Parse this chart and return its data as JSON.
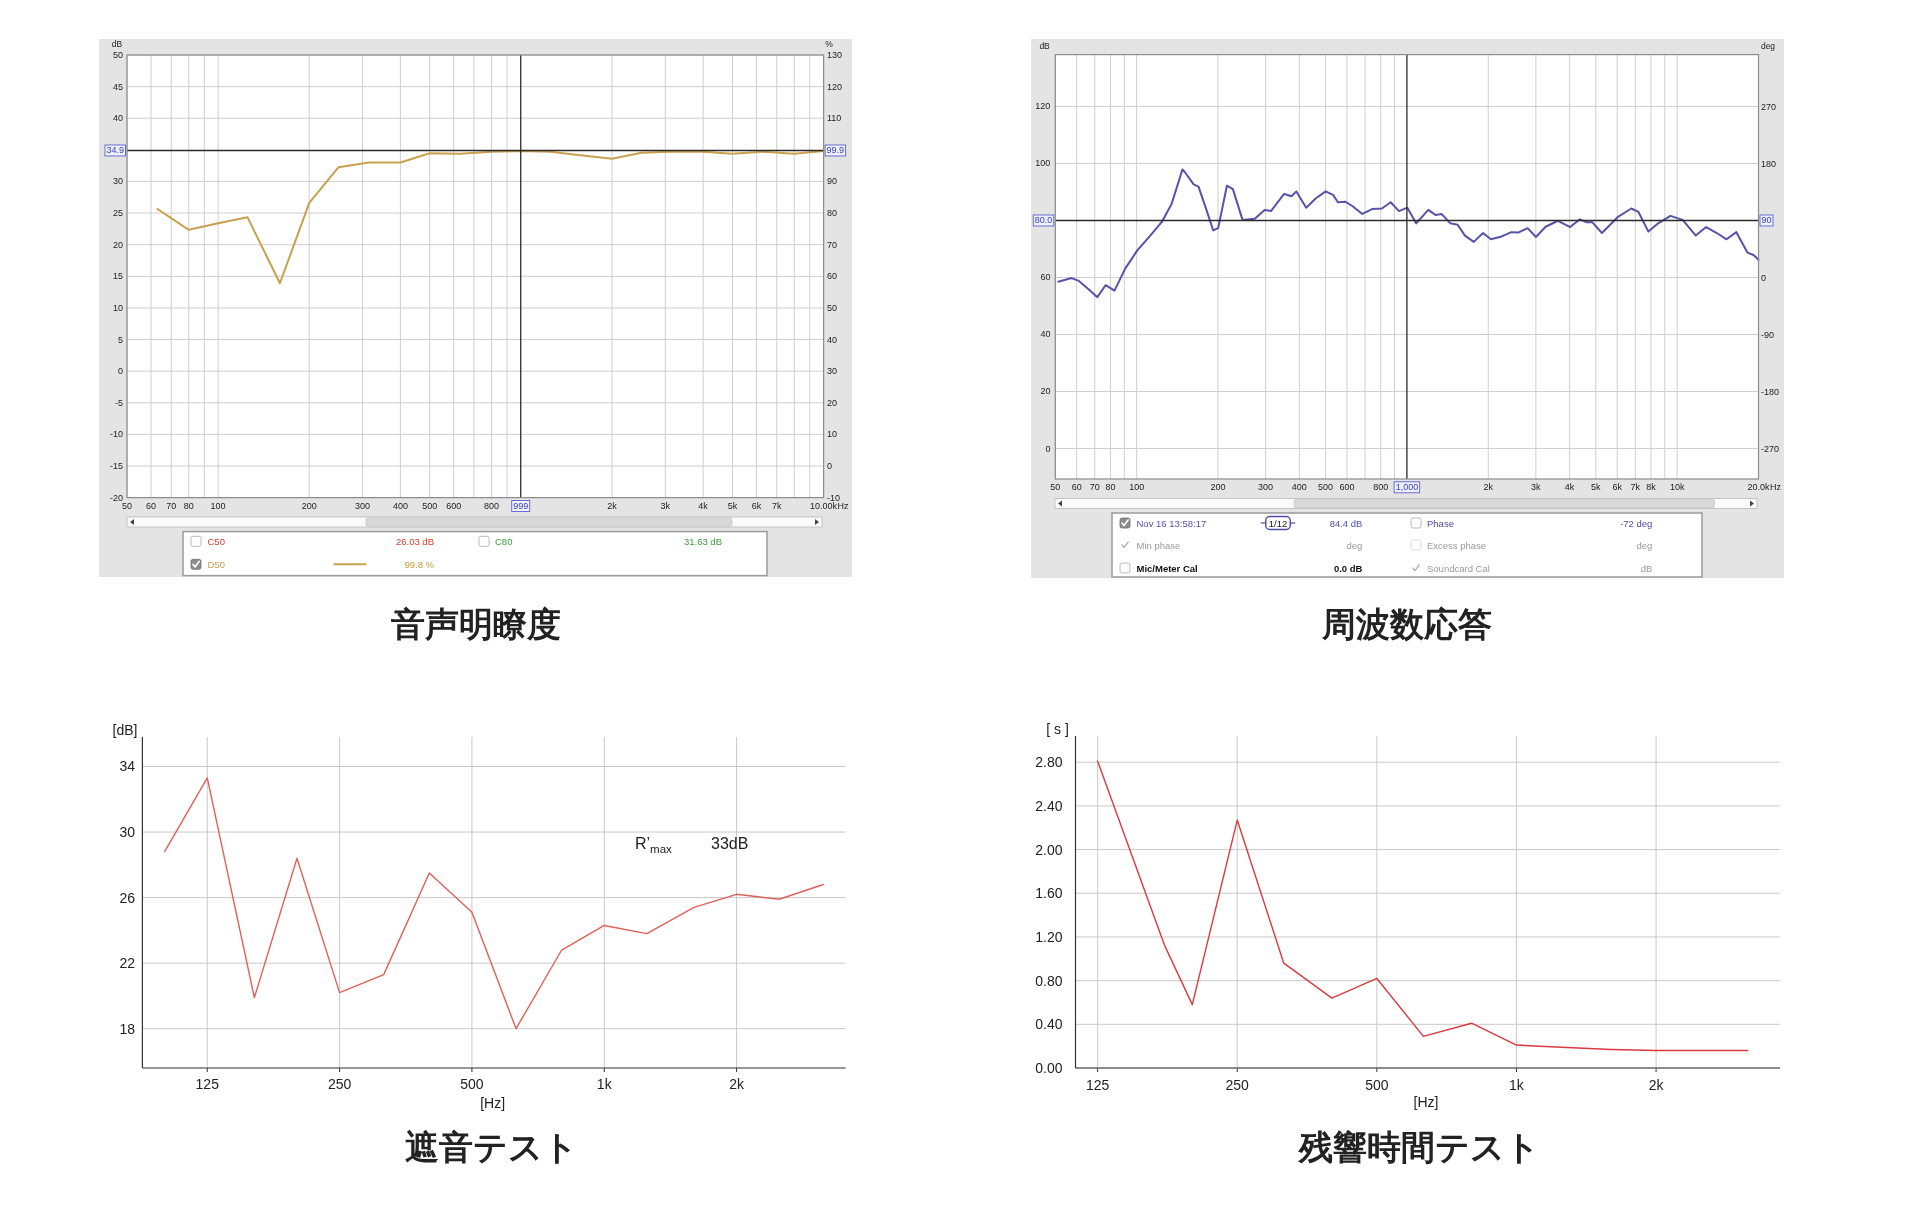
{
  "chart_data": [
    {
      "type": "line",
      "title": "音声明瞭度",
      "xlabel": "Hz",
      "ylabel": "dB",
      "y2label": "%",
      "x": [
        63,
        80,
        100,
        125,
        160,
        200,
        250,
        315,
        400,
        500,
        630,
        800,
        1000,
        1250,
        1600,
        2000,
        2500,
        3150,
        4000,
        5000,
        6300,
        8000,
        10000
      ],
      "series": [
        {
          "name": "D50",
          "color": "#c9a04e",
          "axis": "y2",
          "values": [
            81.3,
            74.7,
            76.8,
            78.7,
            57.8,
            83.2,
            94.5,
            96.0,
            96.0,
            98.9,
            98.8,
            99.4,
            99.6,
            99.4,
            98.2,
            97.2,
            99.1,
            99.4,
            99.4,
            98.8,
            99.4,
            98.8,
            99.6
          ]
        }
      ],
      "xlim": [
        50,
        10000
      ],
      "xticks": [
        50,
        60,
        70,
        80,
        {
          "value": 90,
          "label": null
        },
        100,
        200,
        300,
        400,
        500,
        600,
        {
          "value": 700,
          "label": null
        },
        800,
        {
          "value": 900,
          "label": null
        },
        {
          "value": 2000,
          "label": "2k"
        },
        {
          "value": 3000,
          "label": "3k"
        },
        {
          "value": 4000,
          "label": "4k"
        },
        {
          "value": 5000,
          "label": "5k"
        },
        {
          "value": 6000,
          "label": "6k"
        },
        {
          "value": 7000,
          "label": "7k"
        },
        {
          "value": 8000,
          "label": null
        },
        {
          "value": 9000,
          "label": null
        },
        {
          "value": 10000,
          "label": "10.00k"
        }
      ],
      "ylim": [
        -20,
        50
      ],
      "yticks": [
        -20,
        -15,
        -10,
        -5,
        0,
        5,
        10,
        15,
        20,
        25,
        30,
        40,
        45,
        50
      ],
      "y2lim": [
        -10,
        130
      ],
      "y2ticks": [
        -10,
        0,
        10,
        20,
        30,
        40,
        50,
        60,
        70,
        80,
        90,
        110,
        120,
        130
      ],
      "log": "x",
      "grid": true,
      "legend": "bottom",
      "ref_lines": [
        {
          "axis": "y",
          "value": 34.9,
          "label": "34.9"
        },
        {
          "axis": "x",
          "value": 999,
          "label": "999"
        }
      ],
      "annotations": [
        "C50",
        "26.03 dB",
        "C80",
        "31.63 dB",
        "99.8 %",
        {
          "text": "99.9",
          "x": 10000,
          "y": 34.9
        }
      ]
    },
    {
      "type": "line",
      "title": "周波数応答",
      "xlabel": "Hz",
      "ylabel": "dB",
      "y2label": "deg",
      "x": [
        51.3,
        57.4,
        61.1,
        66.4,
        71.5,
        76.8,
        82.8,
        90.7,
        100.7,
        111.7,
        123.9,
        134.8,
        147.7,
        150.7,
        162.5,
        169.4,
        181.9,
        192,
        200.2,
        215.8,
        227,
        246.5,
        273.6,
        297.4,
        314,
        351.3,
        374,
        390,
        424,
        460.6,
        500.6,
        533,
        555.6,
        591,
        629.7,
        684,
        743,
        808,
        871,
        935,
        1004,
        1082,
        1200,
        1278,
        1343,
        1448,
        1541,
        1640,
        1768,
        1913,
        2046,
        2242,
        2436,
        2592,
        2797,
        3002,
        3262,
        3622,
        4020,
        4365,
        4610,
        4847,
        5270,
        6045,
        6760,
        7193,
        7827,
        8508,
        9443,
        10480,
        11720,
        12800,
        14020,
        15230,
        16560,
        18220,
        19170,
        20000
      ],
      "series": [
        {
          "name": "Nov 16 13:58:17",
          "color": "#5753a8",
          "values": [
            58.5,
            59.8,
            58.8,
            55.9,
            53.1,
            57.3,
            55.4,
            63.1,
            69.6,
            74.4,
            79.5,
            85.9,
            97.9,
            97.0,
            92.7,
            91.9,
            83.3,
            76.5,
            77.3,
            92.2,
            91.0,
            80.2,
            80.6,
            83.7,
            83.3,
            89.3,
            88.5,
            90.2,
            84.5,
            87.8,
            90.2,
            89.0,
            86.4,
            86.6,
            85.0,
            82.3,
            84.0,
            84.2,
            86.4,
            83.3,
            84.5,
            79.0,
            83.7,
            81.9,
            82.3,
            79.0,
            78.5,
            74.7,
            72.5,
            75.6,
            73.4,
            74.4,
            75.9,
            75.8,
            77.3,
            74.2,
            77.8,
            79.9,
            77.7,
            80.4,
            79.4,
            79.4,
            75.6,
            81.3,
            84.2,
            83.0,
            76.1,
            79.0,
            81.6,
            80.2,
            74.7,
            77.7,
            75.6,
            73.4,
            75.9,
            68.7,
            67.9,
            66.2
          ]
        }
      ],
      "xlim": [
        50,
        20000
      ],
      "xticks": [
        50,
        60,
        70,
        80,
        {
          "value": 90,
          "label": null
        },
        100,
        200,
        300,
        400,
        500,
        600,
        {
          "value": 700,
          "label": null
        },
        800,
        {
          "value": 900,
          "label": null
        },
        {
          "value": 2000,
          "label": "2k"
        },
        {
          "value": 3000,
          "label": "3k"
        },
        {
          "value": 4000,
          "label": "4k"
        },
        {
          "value": 5000,
          "label": "5k"
        },
        {
          "value": 6000,
          "label": "6k"
        },
        {
          "value": 7000,
          "label": "7k"
        },
        {
          "value": 8000,
          "label": "8k"
        },
        {
          "value": 9000,
          "label": null
        },
        {
          "value": 10000,
          "label": "10k"
        },
        {
          "value": 20000,
          "label": "20.0k"
        }
      ],
      "ylim": [
        -10.7,
        138.2
      ],
      "yticks": [
        0,
        20,
        40,
        60,
        100,
        120
      ],
      "y2lim": [
        -318,
        352
      ],
      "y2ticks": [
        -270,
        -180,
        -90,
        0,
        180,
        270
      ],
      "log": "x",
      "grid": true,
      "legend": "bottom",
      "ref_lines": [
        {
          "axis": "y",
          "value": 80,
          "label": "80.0"
        },
        {
          "axis": "x",
          "value": 1000,
          "label": "1,000"
        }
      ],
      "annotations": [
        "1/12",
        "84.4 dB",
        "Phase",
        "-72 deg",
        "Min phase",
        "deg",
        "Excess phase",
        "deg",
        "Mic/Meter Cal",
        "0.0 dB",
        "Soundcard Cal",
        "dB",
        {
          "text": "90",
          "x": 20000,
          "y": 80
        }
      ]
    },
    {
      "type": "line",
      "title": "遮音テスト",
      "ylabel": "[dB]",
      "xlabel": "[Hz]",
      "x": [
        100,
        125,
        160,
        200,
        250,
        315,
        400,
        500,
        630,
        800,
        1000,
        1250,
        1600,
        2000,
        2500,
        3150
      ],
      "series": [
        {
          "color": "#e0605a",
          "values": [
            28.8,
            33.3,
            19.9,
            28.4,
            20.2,
            21.3,
            27.5,
            25.1,
            18.0,
            22.8,
            24.3,
            23.8,
            25.4,
            26.2,
            25.9,
            26.8
          ]
        }
      ],
      "xlim": [
        89,
        3540
      ],
      "xticks": [
        125,
        250,
        500,
        {
          "value": 1000,
          "label": "1k"
        },
        {
          "value": 2000,
          "label": "2k"
        }
      ],
      "ylim": [
        15.6,
        35.8
      ],
      "yticks": [
        18,
        22,
        26,
        30,
        34
      ],
      "log": "x",
      "grid": true,
      "annotations": [
        "R’$_{max}$",
        "33dB"
      ]
    },
    {
      "type": "line",
      "title": "残響時間テスト",
      "ylabel": "[ s ]",
      "xlabel": "[Hz]",
      "x": [
        125,
        174,
        200,
        250,
        315,
        400,
        500,
        630,
        800,
        1000,
        1250,
        1600,
        2000,
        2500,
        3150
      ],
      "series": [
        {
          "color": "#d93a3f",
          "values": [
            2.81,
            1.13,
            0.58,
            2.27,
            0.96,
            0.64,
            0.82,
            0.29,
            0.41,
            0.21,
            0.19,
            0.17,
            0.16,
            0.16,
            0.16
          ]
        }
      ],
      "xlim": [
        112,
        3700
      ],
      "xticks": [
        125,
        250,
        500,
        {
          "value": 1000,
          "label": "1k"
        },
        {
          "value": 2000,
          "label": "2k"
        }
      ],
      "ylim": [
        0,
        3.04
      ],
      "yticks": [
        {
          "value": 0,
          "label": "0.00"
        },
        {
          "value": 0.4,
          "label": "0.40"
        },
        {
          "value": 0.8,
          "label": "0.80"
        },
        {
          "value": 1.2,
          "label": "1.20"
        },
        {
          "value": 1.6,
          "label": "1.60"
        },
        {
          "value": 2.0,
          "label": "2.00"
        },
        {
          "value": 2.4,
          "label": "2.40"
        },
        {
          "value": 2.8,
          "label": "2.80"
        }
      ],
      "log": "x",
      "grid": true
    }
  ]
}
